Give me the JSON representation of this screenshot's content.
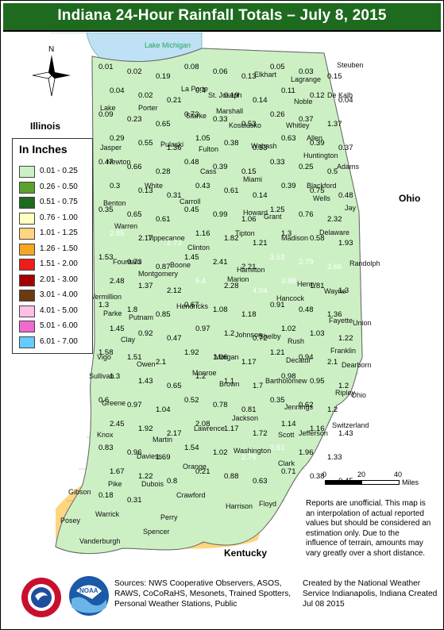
{
  "title": "Indiana 24-Hour Rainfall Totals – July 8, 2015",
  "north": "N",
  "labels": {
    "lake": "Lake Michigan",
    "illinois": "Illinois",
    "ohio": "Ohio",
    "kentucky": "Kentucky"
  },
  "legend": {
    "title": "In Inches",
    "items": [
      {
        "label": "0.01 - 0.25",
        "color": "#ccf0c4"
      },
      {
        "label": "0.26 - 0.50",
        "color": "#5aa12e"
      },
      {
        "label": "0.51 - 0.75",
        "color": "#1e6a1e"
      },
      {
        "label": "0.76 - 1.00",
        "color": "#ffffc0"
      },
      {
        "label": "1.01 - 1.25",
        "color": "#ffd580"
      },
      {
        "label": "1.26 - 1.50",
        "color": "#f5a623"
      },
      {
        "label": "1.51 - 2.00",
        "color": "#ee1c1c"
      },
      {
        "label": "2.01 - 3.00",
        "color": "#a50000"
      },
      {
        "label": "3.01 - 4.00",
        "color": "#6b3a10"
      },
      {
        "label": "4.01 - 5.00",
        "color": "#ffc0e8"
      },
      {
        "label": "5.01 - 6.00",
        "color": "#f06bd0"
      },
      {
        "label": "6.01 - 7.00",
        "color": "#66ccff"
      }
    ]
  },
  "scale": [
    "0",
    "20",
    "40"
  ],
  "scale_unit": "Miles",
  "note": "Reports are unofficial. This map is an interpolation of actual reported values but should be considered an estimation only. Due to the influence of terrain, amounts may vary greatly over a short distance.",
  "footer": {
    "sources": "Sources: NWS Cooperative Observers, ASOS, RAWS, CoCoRaHS, Mesonets, Trained Spotters, Personal Weather Stations, Public",
    "credit": "Created by the National Weather Service Indianapolis, Indiana Created Jul 08 2015"
  },
  "places": [
    "Lake",
    "Porter",
    "La Porte",
    "St. Joseph",
    "Elkhart",
    "Lagrange",
    "Steuben",
    "Newton",
    "Jasper",
    "Starke",
    "Marshall",
    "Kosciusko",
    "Noble",
    "De Kalb",
    "Pulaski",
    "Fulton",
    "Whitley",
    "Allen",
    "Huntington",
    "Wabash",
    "Miami",
    "Cass",
    "Carroll",
    "White",
    "Benton",
    "Warren",
    "Tippecanoe",
    "Clinton",
    "Howard",
    "Grant",
    "Blackford",
    "Wells",
    "Adams",
    "Jay",
    "Randolph",
    "Delaware",
    "Madison",
    "Tipton",
    "Hamilton",
    "Boone",
    "Montgomery",
    "Fountain",
    "Vermillion",
    "Parke",
    "Putnam",
    "Hendricks",
    "Marion",
    "Hancock",
    "Henry",
    "Wayne",
    "Fayette",
    "Union",
    "Rush",
    "Shelby",
    "Johnson",
    "Morgan",
    "Owen",
    "Clay",
    "Vigo",
    "Sullivan",
    "Greene",
    "Monroe",
    "Brown",
    "Bartholomew",
    "Decatur",
    "Franklin",
    "Dearborn",
    "Ripley",
    "Jennings",
    "Jackson",
    "Lawrence",
    "Martin",
    "Daviess",
    "Knox",
    "Pike",
    "Dubois",
    "Orange",
    "Washington",
    "Scott",
    "Jefferson",
    "Switzerland",
    "Ohio",
    "Clark",
    "Floyd",
    "Harrison",
    "Crawford",
    "Perry",
    "Spencer",
    "Warrick",
    "Vanderburgh",
    "Posey",
    "Gibson"
  ],
  "values": [
    "0.01",
    "0.02",
    "0.19",
    "0.08",
    "0.06",
    "0.13",
    "0.05",
    "0.03",
    "0.15",
    "0.04",
    "0.02",
    "0.21",
    "0.4",
    "0.19",
    "0.14",
    "0.11",
    "0.12",
    "0.04",
    "0.09",
    "0.23",
    "0.65",
    "0.73",
    "0.33",
    "0.53",
    "0.26",
    "0.37",
    "1.37",
    "0.29",
    "0.55",
    "1.36",
    "1.05",
    "0.38",
    "0.33",
    "0.63",
    "0.39",
    "0.37",
    "0.47",
    "0.66",
    "0.28",
    "0.48",
    "0.39",
    "0.15",
    "0.33",
    "0.25",
    "0.5",
    "0.3",
    "0.13",
    "0.31",
    "0.43",
    "0.61",
    "0.14",
    "0.39",
    "0.75",
    "0.48",
    "0.35",
    "0.65",
    "0.61",
    "0.45",
    "0.99",
    "1.06",
    "1.25",
    "0.76",
    "2.32",
    "2.85",
    "2.17",
    "2.73",
    "1.16",
    "1.82",
    "1.21",
    "1.3",
    "0.58",
    "1.93",
    "1.53",
    "0.73",
    "0.87",
    "1.45",
    "2.41",
    "2.21",
    "3.53",
    "2.79",
    "3.66",
    "2.48",
    "1.37",
    "2.12",
    "5.4",
    "2.28",
    "4.04",
    "3.88",
    "1.81",
    "1.3",
    "1.3",
    "1.8",
    "0.85",
    "0.67",
    "1.08",
    "1.18",
    "0.91",
    "0.48",
    "1.36",
    "1.45",
    "0.92",
    "0.47",
    "0.97",
    "1.2",
    "0.72",
    "1.02",
    "1.03",
    "1.22",
    "1.58",
    "1.51",
    "2.1",
    "1.92",
    "1.06",
    "1.17",
    "1.21",
    "0.94",
    "2.1",
    "1.3",
    "1.43",
    "0.65",
    "1.2",
    "1.1",
    "1.7",
    "0.98",
    "0.95",
    "1.2",
    "0.6",
    "0.97",
    "1.04",
    "0.52",
    "0.78",
    "0.81",
    "0.35",
    "0.62",
    "1.2",
    "2.45",
    "1.92",
    "2.17",
    "2.08",
    "1.17",
    "1.72",
    "1.14",
    "1.16",
    "1.43",
    "0.83",
    "0.96",
    "1.69",
    "1.54",
    "1.02",
    "2.76",
    "2.61",
    "1.96",
    "1.33",
    "1.67",
    "1.22",
    "0.8",
    "0.21",
    "0.88",
    "0.63",
    "0.71",
    "0.38",
    "0.45",
    "0.18",
    "0.31"
  ]
}
